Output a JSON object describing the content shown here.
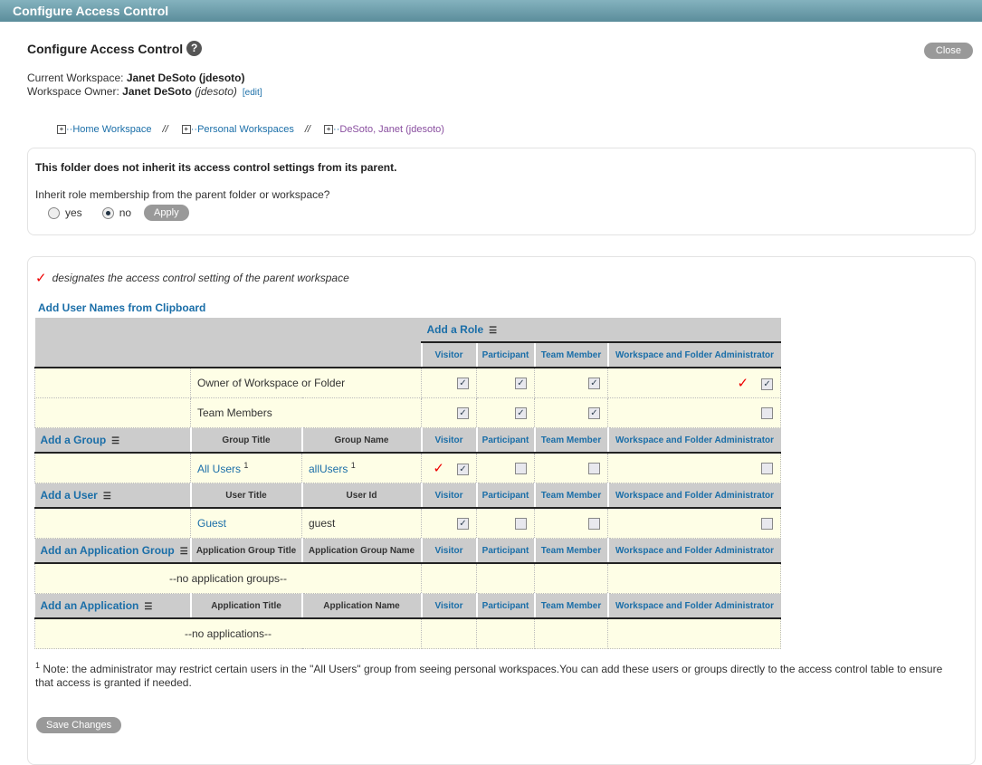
{
  "window_title": "Configure Access Control",
  "heading": "Configure Access Control",
  "close_label": "Close",
  "current_workspace_label": "Current Workspace:",
  "current_workspace": "Janet DeSoto (jdesoto)",
  "owner_label": "Workspace Owner:",
  "owner_name": "Janet DeSoto",
  "owner_id": "(jdesoto)",
  "edit_label": "[edit]",
  "breadcrumbs": [
    "Home Workspace",
    "Personal Workspaces",
    "DeSoto, Janet (jdesoto)"
  ],
  "breadcrumb_sep": "//",
  "inherit": {
    "status": "This folder does not inherit its access control settings from its parent.",
    "question": "Inherit role membership from the parent folder or workspace?",
    "yes": "yes",
    "no": "no",
    "selected": "no",
    "apply": "Apply"
  },
  "legend": "designates the access control setting of the parent workspace",
  "clipboard_link": "Add User Names from Clipboard",
  "add_role": "Add a Role",
  "roles": [
    "Visitor",
    "Participant",
    "Team Member",
    "Workspace and Folder Administrator"
  ],
  "role_rows": [
    {
      "label": "Owner of Workspace or Folder",
      "checks": [
        true,
        true,
        true,
        true
      ],
      "parent": 3
    },
    {
      "label": "Team Members",
      "checks": [
        true,
        true,
        true,
        false
      ],
      "parent": -1
    }
  ],
  "groups": {
    "add": "Add a Group",
    "col1": "Group Title",
    "col2": "Group Name",
    "rows": [
      {
        "title": "All Users",
        "name": "allUsers",
        "sup": "1",
        "checks": [
          true,
          false,
          false,
          false
        ],
        "parent": 0
      }
    ]
  },
  "users": {
    "add": "Add a User",
    "col1": "User Title",
    "col2": "User Id",
    "rows": [
      {
        "title": "Guest",
        "name": "guest",
        "checks": [
          true,
          false,
          false,
          false
        ],
        "parent": -1
      }
    ]
  },
  "app_groups": {
    "add": "Add an Application Group",
    "col1": "Application Group Title",
    "col2": "Application Group Name",
    "empty": "--no application groups--"
  },
  "apps": {
    "add": "Add an Application",
    "col1": "Application Title",
    "col2": "Application Name",
    "empty": "--no applications--"
  },
  "note_sup": "1",
  "note": "Note: the administrator may restrict certain users in the \"All Users\" group from seeing personal workspaces.You can add these users or groups directly to the access control table to ensure that access is granted if needed.",
  "save_label": "Save Changes"
}
